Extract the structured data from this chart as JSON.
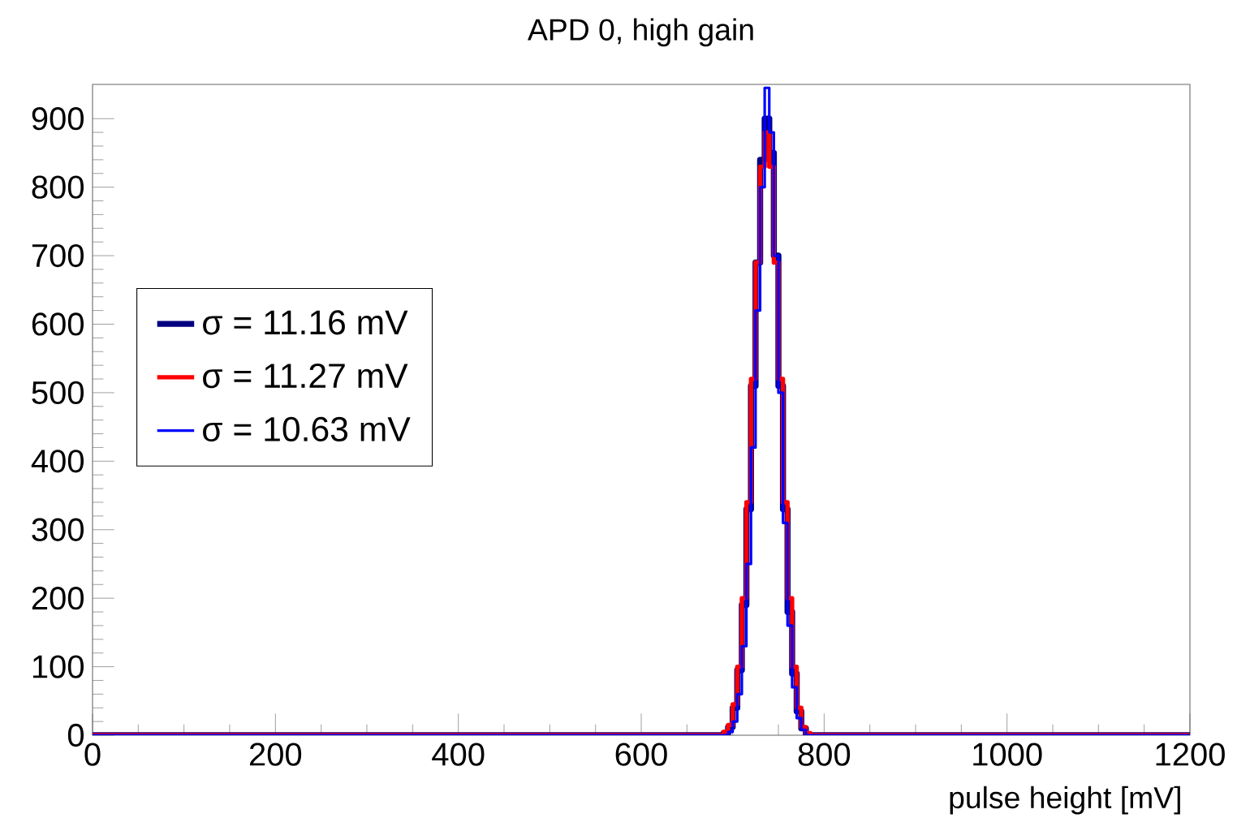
{
  "chart_data": {
    "type": "step",
    "title": "APD 0, high gain",
    "xlabel": "pulse height [mV]",
    "xlim": [
      0,
      1200
    ],
    "ylim": [
      0,
      950
    ],
    "xticks": [
      0,
      200,
      400,
      600,
      800,
      1000,
      1200
    ],
    "yticks": [
      0,
      100,
      200,
      300,
      400,
      500,
      600,
      700,
      800,
      900
    ],
    "legend": "left",
    "grid": false,
    "series": [
      {
        "name": "σ = 11.16 mV",
        "color": "#000080",
        "x": [
          0,
          685,
          690,
          695,
          700,
          705,
          710,
          715,
          720,
          725,
          730,
          735,
          740,
          745,
          750,
          755,
          760,
          765,
          770,
          775,
          780,
          1200
        ],
        "values": [
          0,
          0,
          3,
          12,
          40,
          95,
          190,
          330,
          510,
          690,
          840,
          900,
          850,
          700,
          510,
          330,
          180,
          90,
          35,
          10,
          0,
          0
        ]
      },
      {
        "name": "σ = 11.27 mV",
        "color": "#ff0000",
        "x": [
          0,
          685,
          690,
          695,
          700,
          705,
          710,
          715,
          720,
          725,
          730,
          735,
          740,
          745,
          750,
          755,
          760,
          765,
          770,
          775,
          780,
          785,
          1200
        ],
        "values": [
          0,
          0,
          5,
          15,
          45,
          100,
          200,
          340,
          520,
          690,
          830,
          880,
          830,
          690,
          520,
          340,
          200,
          100,
          40,
          12,
          3,
          0,
          0
        ]
      },
      {
        "name": "σ = 10.63 mV",
        "color": "#0000ff",
        "x": [
          0,
          690,
          695,
          700,
          705,
          710,
          715,
          720,
          725,
          730,
          735,
          740,
          745,
          750,
          755,
          760,
          765,
          770,
          775,
          780,
          1200
        ],
        "values": [
          0,
          0,
          5,
          20,
          60,
          130,
          250,
          420,
          620,
          800,
          945,
          880,
          700,
          500,
          310,
          160,
          70,
          25,
          8,
          0,
          0
        ]
      }
    ]
  }
}
